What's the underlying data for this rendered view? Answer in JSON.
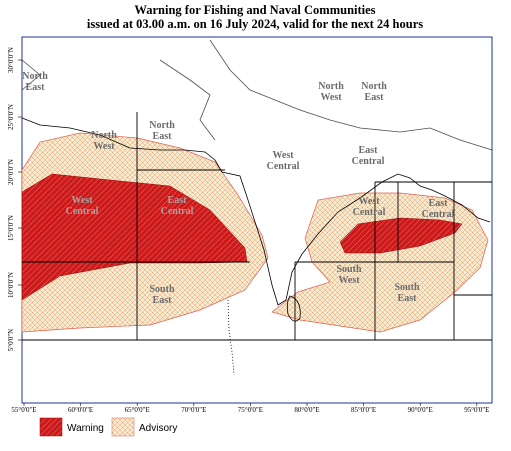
{
  "title": {
    "line1": "Warning for Fishing and Naval Communities",
    "line2": "issued at 03.00 a.m.  on 16 July 2024, valid for the next 24 hours"
  },
  "lat_labels": [
    "30°0'0\"N",
    "25°0'0\"N",
    "20°0'0\"N",
    "15°0'0\"N",
    "10°0'0\"N",
    "5°0'0\"N"
  ],
  "lon_labels": [
    "55°0'0\"E",
    "60°0'0\"E",
    "65°0'0\"E",
    "70°0'0\"E",
    "75°0'0\"E",
    "80°0'0\"E",
    "85°0'0\"E",
    "90°0'0\"E",
    "95°0'0\"E"
  ],
  "regions": [
    {
      "lines": [
        "North",
        "East"
      ]
    },
    {
      "lines": [
        "North",
        "West"
      ]
    },
    {
      "lines": [
        "North",
        "East"
      ]
    },
    {
      "lines": [
        "West",
        "Central"
      ]
    },
    {
      "lines": [
        "East",
        "Central"
      ]
    },
    {
      "lines": [
        "South",
        "East"
      ]
    },
    {
      "lines": [
        "West",
        "Central"
      ]
    },
    {
      "lines": [
        "North",
        "West"
      ]
    },
    {
      "lines": [
        "North",
        "East"
      ]
    },
    {
      "lines": [
        "East",
        "Central"
      ]
    },
    {
      "lines": [
        "West",
        "Central"
      ]
    },
    {
      "lines": [
        "East",
        "Central"
      ]
    },
    {
      "lines": [
        "South",
        "West"
      ]
    },
    {
      "lines": [
        "South",
        "East"
      ]
    }
  ],
  "legend": [
    "Warning",
    "Advisory"
  ]
}
